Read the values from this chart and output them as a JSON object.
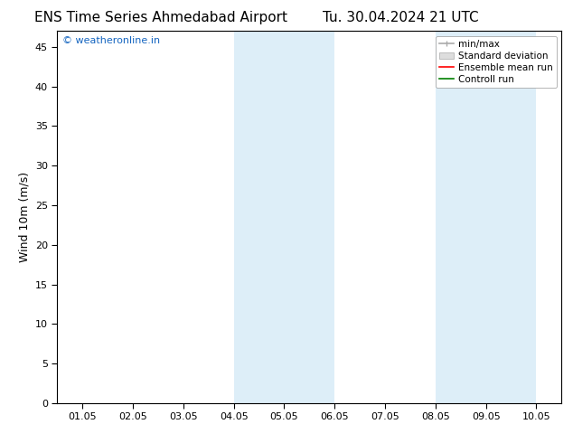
{
  "title_left": "ENS Time Series Ahmedabad Airport",
  "title_right": "Tu. 30.04.2024 21 UTC",
  "ylabel": "Wind 10m (m/s)",
  "ylim": [
    0,
    47
  ],
  "yticks": [
    0,
    5,
    10,
    15,
    20,
    25,
    30,
    35,
    40,
    45
  ],
  "xtick_labels": [
    "01.05",
    "02.05",
    "03.05",
    "04.05",
    "05.05",
    "06.05",
    "07.05",
    "08.05",
    "09.05",
    "10.05"
  ],
  "xtick_positions": [
    0,
    1,
    2,
    3,
    4,
    5,
    6,
    7,
    8,
    9
  ],
  "xlim": [
    -0.5,
    9.5
  ],
  "shaded_regions": [
    {
      "xmin": 3.0,
      "xmax": 4.0,
      "color": "#ddeef8"
    },
    {
      "xmin": 4.0,
      "xmax": 5.0,
      "color": "#ddeef8"
    },
    {
      "xmin": 7.0,
      "xmax": 8.0,
      "color": "#ddeef8"
    },
    {
      "xmin": 8.0,
      "xmax": 9.0,
      "color": "#ddeef8"
    }
  ],
  "legend_entries": [
    {
      "label": "min/max",
      "color": "#aaaaaa"
    },
    {
      "label": "Standard deviation",
      "color": "#cccccc"
    },
    {
      "label": "Ensemble mean run",
      "color": "red"
    },
    {
      "label": "Controll run",
      "color": "green"
    }
  ],
  "watermark_text": "© weatheronline.in",
  "watermark_color": "#1565c0",
  "bg_color": "#ffffff",
  "title_fontsize": 11,
  "axis_label_fontsize": 9,
  "tick_fontsize": 8,
  "legend_fontsize": 7.5
}
